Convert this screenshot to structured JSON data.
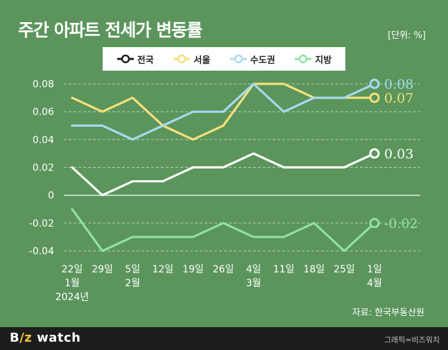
{
  "header": {
    "title": "주간 아파트 전세가 변동률",
    "unit": "[단위: %]"
  },
  "source": "자료: 한국부동산원",
  "footer": {
    "brand_a": "B",
    "brand_b": "/z",
    "brand_c": " watch",
    "credit": "그래픽=비즈워치"
  },
  "chart_data": {
    "type": "line",
    "categories": [
      [
        "22일",
        "1월",
        "2024년"
      ],
      [
        "29일"
      ],
      [
        "5일",
        "2월"
      ],
      [
        "12일"
      ],
      [
        "19일"
      ],
      [
        "26일"
      ],
      [
        "4일",
        "3월"
      ],
      [
        "11일"
      ],
      [
        "18일"
      ],
      [
        "25일"
      ],
      [
        "1일",
        "4월"
      ]
    ],
    "ylim": [
      -0.04,
      0.08
    ],
    "yticks": [
      "-0.04",
      "-0.02",
      "0",
      "0.02",
      "0.04",
      "0.06",
      "0.08"
    ],
    "grid": true,
    "legend_position": "top-center",
    "series": [
      {
        "name": "전국",
        "color": "#ffffff",
        "values": [
          0.02,
          0.0,
          0.01,
          0.01,
          0.02,
          0.02,
          0.03,
          0.02,
          0.02,
          0.02,
          0.03
        ],
        "end_label": "0.03"
      },
      {
        "name": "서울",
        "color": "#f5e07d",
        "values": [
          0.07,
          0.06,
          0.07,
          0.05,
          0.04,
          0.05,
          0.08,
          0.08,
          0.07,
          0.07,
          0.07
        ],
        "end_label": "0.07"
      },
      {
        "name": "수도권",
        "color": "#a9d9ef",
        "values": [
          0.05,
          0.05,
          0.04,
          0.05,
          0.06,
          0.06,
          0.08,
          0.06,
          0.07,
          0.07,
          0.08
        ],
        "end_label": "0.08"
      },
      {
        "name": "지방",
        "color": "#8fe3a0",
        "values": [
          -0.01,
          -0.04,
          -0.03,
          -0.03,
          -0.03,
          -0.02,
          -0.03,
          -0.03,
          -0.02,
          -0.04,
          -0.02
        ],
        "end_label": "-0.02"
      }
    ]
  }
}
